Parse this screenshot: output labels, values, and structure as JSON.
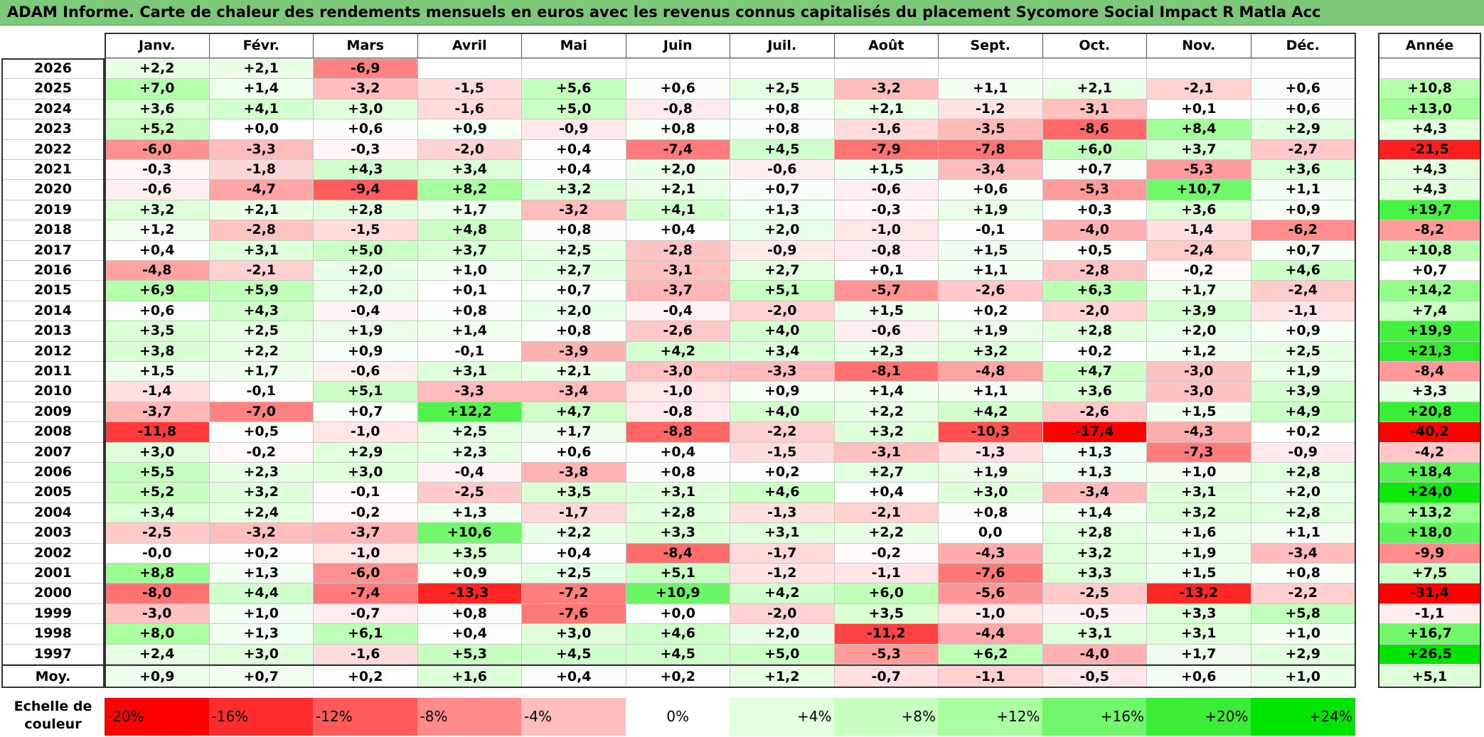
{
  "title": "ADAM Informe. Carte de chaleur des rendements mensuels en euros avec les revenus connus capitalisés du placement Sycomore Social Impact R Matla Acc",
  "colors": {
    "header_bg": "#7dc97a",
    "negative_max": "#ff0000",
    "positive_max": "#00e600",
    "neutral": "#ffffff"
  },
  "chart_data": {
    "type": "heatmap",
    "title": "ADAM Informe. Carte de chaleur des rendements mensuels en euros avec les revenus connus capitalisés du placement Sycomore Social Impact R Matla Acc",
    "columns": [
      "Janv.",
      "Févr.",
      "Mars",
      "Avril",
      "Mai",
      "Juin",
      "Juil.",
      "Août",
      "Sept.",
      "Oct.",
      "Nov.",
      "Déc."
    ],
    "annual_label": "Année",
    "rows": [
      {
        "year": "2026",
        "values": [
          "+2,2",
          "+2,1",
          "-6,9",
          "",
          "",
          "",
          "",
          "",
          "",
          "",
          "",
          ""
        ],
        "annual": ""
      },
      {
        "year": "2025",
        "values": [
          "+7,0",
          "+1,4",
          "-3,2",
          "-1,5",
          "+5,6",
          "+0,6",
          "+2,5",
          "-3,2",
          "+1,1",
          "+2,1",
          "-2,1",
          "+0,6"
        ],
        "annual": "+10,8"
      },
      {
        "year": "2024",
        "values": [
          "+3,6",
          "+4,1",
          "+3,0",
          "-1,6",
          "+5,0",
          "-0,8",
          "+0,8",
          "+2,1",
          "-1,2",
          "-3,1",
          "+0,1",
          "+0,6"
        ],
        "annual": "+13,0"
      },
      {
        "year": "2023",
        "values": [
          "+5,2",
          "+0,0",
          "+0,6",
          "+0,9",
          "-0,9",
          "+0,8",
          "+0,8",
          "-1,6",
          "-3,5",
          "-8,6",
          "+8,4",
          "+2,9"
        ],
        "annual": "+4,3"
      },
      {
        "year": "2022",
        "values": [
          "-6,0",
          "-3,3",
          "-0,3",
          "-2,0",
          "+0,4",
          "-7,4",
          "+4,5",
          "-7,9",
          "-7,8",
          "+6,0",
          "+3,7",
          "-2,7"
        ],
        "annual": "-21,5"
      },
      {
        "year": "2021",
        "values": [
          "-0,3",
          "-1,8",
          "+4,3",
          "+3,4",
          "+0,4",
          "+2,0",
          "-0,6",
          "+1,5",
          "-3,4",
          "+0,7",
          "-5,3",
          "+3,6"
        ],
        "annual": "+4,3"
      },
      {
        "year": "2020",
        "values": [
          "-0,6",
          "-4,7",
          "-9,4",
          "+8,2",
          "+3,2",
          "+2,1",
          "+0,7",
          "-0,6",
          "+0,6",
          "-5,3",
          "+10,7",
          "+1,1"
        ],
        "annual": "+4,3"
      },
      {
        "year": "2019",
        "values": [
          "+3,2",
          "+2,1",
          "+2,8",
          "+1,7",
          "-3,2",
          "+4,1",
          "+1,3",
          "-0,3",
          "+1,9",
          "+0,3",
          "+3,6",
          "+0,9"
        ],
        "annual": "+19,7"
      },
      {
        "year": "2018",
        "values": [
          "+1,2",
          "-2,8",
          "-1,5",
          "+4,8",
          "+0,8",
          "+0,4",
          "+2,0",
          "-1,0",
          "-0,1",
          "-4,0",
          "-1,4",
          "-6,2"
        ],
        "annual": "-8,2"
      },
      {
        "year": "2017",
        "values": [
          "+0,4",
          "+3,1",
          "+5,0",
          "+3,7",
          "+2,5",
          "-2,8",
          "-0,9",
          "-0,8",
          "+1,5",
          "+0,5",
          "-2,4",
          "+0,7"
        ],
        "annual": "+10,8"
      },
      {
        "year": "2016",
        "values": [
          "-4,8",
          "-2,1",
          "+2,0",
          "+1,0",
          "+2,7",
          "-3,1",
          "+2,7",
          "+0,1",
          "+1,1",
          "-2,8",
          "-0,2",
          "+4,6"
        ],
        "annual": "+0,7"
      },
      {
        "year": "2015",
        "values": [
          "+6,9",
          "+5,9",
          "+2,0",
          "+0,1",
          "+0,7",
          "-3,7",
          "+5,1",
          "-5,7",
          "-2,6",
          "+6,3",
          "+1,7",
          "-2,4"
        ],
        "annual": "+14,2"
      },
      {
        "year": "2014",
        "values": [
          "+0,6",
          "+4,3",
          "-0,4",
          "+0,8",
          "+2,0",
          "-0,4",
          "-2,0",
          "+1,5",
          "+0,2",
          "-2,0",
          "+3,9",
          "-1,1"
        ],
        "annual": "+7,4"
      },
      {
        "year": "2013",
        "values": [
          "+3,5",
          "+2,5",
          "+1,9",
          "+1,4",
          "+0,8",
          "-2,6",
          "+4,0",
          "-0,6",
          "+1,9",
          "+2,8",
          "+2,0",
          "+0,9"
        ],
        "annual": "+19,9"
      },
      {
        "year": "2012",
        "values": [
          "+3,8",
          "+2,2",
          "+0,9",
          "-0,1",
          "-3,9",
          "+4,2",
          "+3,4",
          "+2,3",
          "+3,2",
          "+0,2",
          "+1,2",
          "+2,5"
        ],
        "annual": "+21,3"
      },
      {
        "year": "2011",
        "values": [
          "+1,5",
          "+1,7",
          "-0,6",
          "+3,1",
          "+2,1",
          "-3,0",
          "-3,3",
          "-8,1",
          "-4,8",
          "+4,7",
          "-3,0",
          "+1,9"
        ],
        "annual": "-8,4"
      },
      {
        "year": "2010",
        "values": [
          "-1,4",
          "-0,1",
          "+5,1",
          "-3,3",
          "-3,4",
          "-1,0",
          "+0,9",
          "+1,4",
          "+1,1",
          "+3,6",
          "-3,0",
          "+3,9"
        ],
        "annual": "+3,3"
      },
      {
        "year": "2009",
        "values": [
          "-3,7",
          "-7,0",
          "+0,7",
          "+12,2",
          "+4,7",
          "-0,8",
          "+4,0",
          "+2,2",
          "+4,2",
          "-2,6",
          "+1,5",
          "+4,9"
        ],
        "annual": "+20,8"
      },
      {
        "year": "2008",
        "values": [
          "-11,8",
          "+0,5",
          "-1,0",
          "+2,5",
          "+1,7",
          "-8,8",
          "-2,2",
          "+3,2",
          "-10,3",
          "-17,4",
          "-4,3",
          "+0,2"
        ],
        "annual": "-40,2"
      },
      {
        "year": "2007",
        "values": [
          "+3,0",
          "-0,2",
          "+2,9",
          "+2,3",
          "+0,6",
          "+0,4",
          "-1,5",
          "-3,1",
          "-1,3",
          "+1,3",
          "-7,3",
          "-0,9"
        ],
        "annual": "-4,2"
      },
      {
        "year": "2006",
        "values": [
          "+5,5",
          "+2,3",
          "+3,0",
          "-0,4",
          "-3,8",
          "+0,8",
          "+0,2",
          "+2,7",
          "+1,9",
          "+1,3",
          "+1,0",
          "+2,8"
        ],
        "annual": "+18,4"
      },
      {
        "year": "2005",
        "values": [
          "+5,2",
          "+3,2",
          "-0,1",
          "-2,5",
          "+3,5",
          "+3,1",
          "+4,6",
          "+0,4",
          "+3,0",
          "-3,4",
          "+3,1",
          "+2,0"
        ],
        "annual": "+24,0"
      },
      {
        "year": "2004",
        "values": [
          "+3,4",
          "+2,4",
          "-0,2",
          "+1,3",
          "-1,7",
          "+2,8",
          "-1,3",
          "-2,1",
          "+0,8",
          "+1,4",
          "+3,2",
          "+2,8"
        ],
        "annual": "+13,2"
      },
      {
        "year": "2003",
        "values": [
          "-2,5",
          "-3,2",
          "-3,7",
          "+10,6",
          "+2,2",
          "+3,3",
          "+3,1",
          "+2,2",
          "0,0",
          "+2,8",
          "+1,6",
          "+1,1"
        ],
        "annual": "+18,0"
      },
      {
        "year": "2002",
        "values": [
          "-0,0",
          "+0,2",
          "-1,0",
          "+3,5",
          "+0,4",
          "-8,4",
          "-1,7",
          "-0,2",
          "-4,3",
          "+3,2",
          "+1,9",
          "-3,4"
        ],
        "annual": "-9,9"
      },
      {
        "year": "2001",
        "values": [
          "+8,8",
          "+1,3",
          "-6,0",
          "+0,9",
          "+2,5",
          "+5,1",
          "-1,2",
          "-1,1",
          "-7,6",
          "+3,3",
          "+1,5",
          "+0,8"
        ],
        "annual": "+7,5"
      },
      {
        "year": "2000",
        "values": [
          "-8,0",
          "+4,4",
          "-7,4",
          "-13,3",
          "-7,2",
          "+10,9",
          "+4,2",
          "+6,0",
          "-5,6",
          "-2,5",
          "-13,2",
          "-2,2"
        ],
        "annual": "-31,4"
      },
      {
        "year": "1999",
        "values": [
          "-3,0",
          "+1,0",
          "-0,7",
          "+0,8",
          "-7,6",
          "+0,0",
          "-2,0",
          "+3,5",
          "-1,0",
          "-0,5",
          "+3,3",
          "+5,8"
        ],
        "annual": "-1,1"
      },
      {
        "year": "1998",
        "values": [
          "+8,0",
          "+1,3",
          "+6,1",
          "+0,4",
          "+3,0",
          "+4,6",
          "+2,0",
          "-11,2",
          "-4,4",
          "+3,1",
          "+3,1",
          "+1,0"
        ],
        "annual": "+16,7"
      },
      {
        "year": "1997",
        "values": [
          "+2,4",
          "+3,0",
          "-1,6",
          "+5,3",
          "+4,5",
          "+4,5",
          "+5,0",
          "-5,3",
          "+6,2",
          "-4,0",
          "+1,7",
          "+2,9"
        ],
        "annual": "+26,5"
      }
    ],
    "average": {
      "label": "Moy.",
      "values": [
        "+0,9",
        "+0,7",
        "+0,2",
        "+1,6",
        "+0,4",
        "+0,2",
        "+1,2",
        "-0,7",
        "-1,1",
        "-0,5",
        "+0,6",
        "+1,0"
      ],
      "annual": "+5,1"
    },
    "scale": {
      "label_line1": "Echelle de",
      "label_line2": "couleur",
      "steps": [
        "-20%",
        "-16%",
        "-12%",
        "-8%",
        "-4%",
        "0%",
        "+4%",
        "+8%",
        "+12%",
        "+16%",
        "+20%",
        "+24%"
      ],
      "step_values": [
        -20,
        -16,
        -12,
        -8,
        -4,
        0,
        4,
        8,
        12,
        16,
        20,
        24
      ]
    },
    "color_range_monthly": [
      -16,
      16
    ],
    "color_range_annual": [
      -25,
      25
    ]
  }
}
